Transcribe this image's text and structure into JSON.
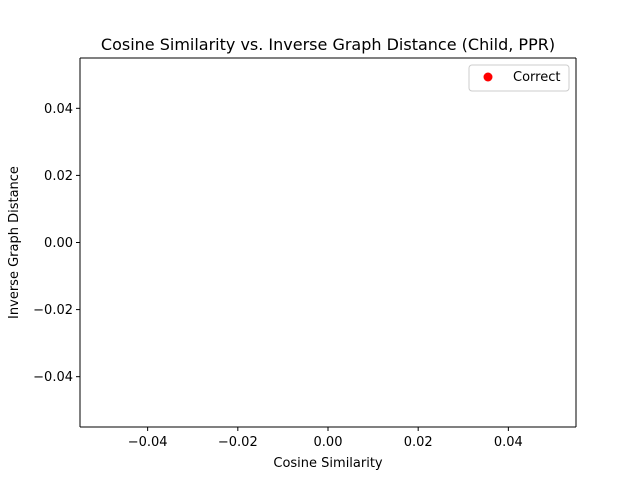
{
  "chart_data": {
    "type": "scatter",
    "title": "Cosine Similarity vs. Inverse Graph Distance (Child, PPR)",
    "xlabel": "Cosine Similarity",
    "ylabel": "Inverse Graph Distance",
    "xlim": [
      -0.055,
      0.055
    ],
    "ylim": [
      -0.055,
      0.055
    ],
    "xticks": [
      -0.04,
      -0.02,
      0.0,
      0.02,
      0.04
    ],
    "yticks": [
      -0.04,
      -0.02,
      0.0,
      0.02,
      0.04
    ],
    "xtick_labels": [
      "−0.04",
      "−0.02",
      "0.00",
      "0.02",
      "0.04"
    ],
    "ytick_labels": [
      "−0.04",
      "−0.02",
      "0.00",
      "0.02",
      "0.04"
    ],
    "grid": false,
    "legend_position": "top-right",
    "series": [
      {
        "name": "Correct",
        "color": "#ff0000",
        "marker": "circle",
        "points": []
      }
    ]
  }
}
